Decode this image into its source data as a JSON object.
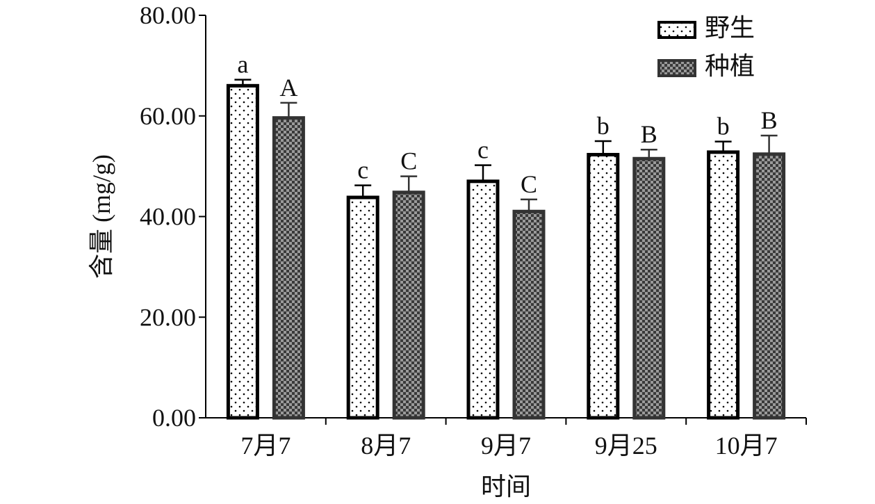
{
  "chart_data": {
    "type": "bar",
    "title": "",
    "xlabel": "时间",
    "ylabel": "含量 (mg/g)",
    "ylim": [
      0,
      80
    ],
    "yticks": [
      "0.00",
      "20.00",
      "40.00",
      "60.00",
      "80.00"
    ],
    "categories": [
      "7月7",
      "8月7",
      "9月7",
      "9月25",
      "10月7"
    ],
    "legend_position": "top-right",
    "series": [
      {
        "name": "野生",
        "pattern": "dots",
        "color": "#ffffff",
        "edge_color": "#000000",
        "values": [
          66.0,
          43.8,
          47.0,
          52.3,
          52.8
        ],
        "errors": [
          1.2,
          2.4,
          3.2,
          2.7,
          2.1
        ],
        "labels": [
          "a",
          "c",
          "c",
          "b",
          "b"
        ]
      },
      {
        "name": "种植",
        "pattern": "checker",
        "color": "#777777",
        "edge_color": "#333333",
        "values": [
          59.6,
          44.8,
          41.0,
          51.5,
          52.4
        ],
        "errors": [
          3.0,
          3.2,
          2.4,
          1.8,
          3.7
        ],
        "labels": [
          "A",
          "C",
          "C",
          "B",
          "B"
        ]
      }
    ]
  }
}
